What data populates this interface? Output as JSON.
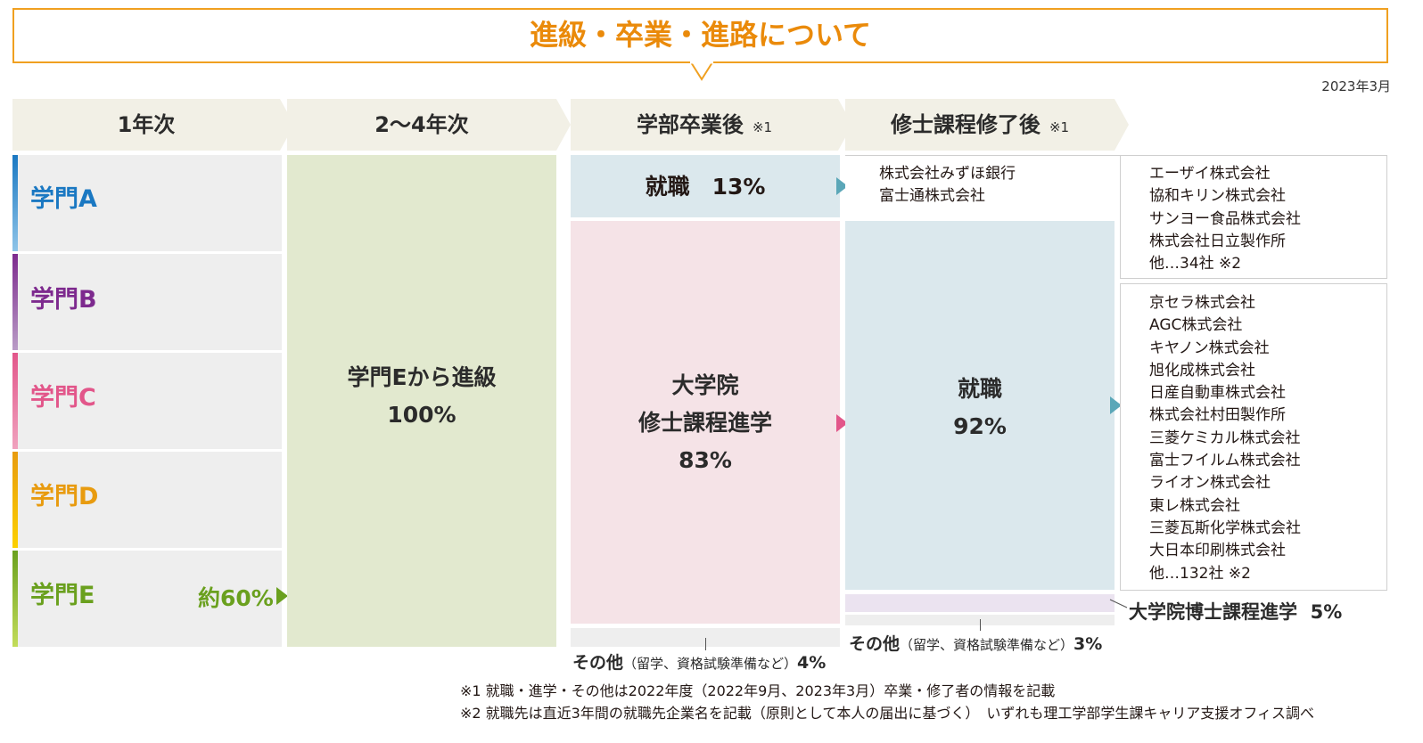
{
  "title": "進級・卒業・進路について",
  "date": "2023年3月",
  "headers": [
    {
      "label": "1年次",
      "note": ""
    },
    {
      "label": "2〜4年次",
      "note": ""
    },
    {
      "label": "学部卒業後",
      "note": "※1"
    },
    {
      "label": "修士課程修了後",
      "note": "※1"
    }
  ],
  "departments": [
    {
      "label": "学門A",
      "color": "#1a78c2"
    },
    {
      "label": "学門B",
      "color": "#7d2a8e"
    },
    {
      "label": "学門C",
      "color": "#e2568a"
    },
    {
      "label": "学門D",
      "color": "#e89b0f"
    },
    {
      "label": "学門E",
      "color": "#6aa01e"
    }
  ],
  "dept_e_percent": "約60%",
  "advance": {
    "line1": "学門Eから進級",
    "line2": "100%"
  },
  "undergrad": {
    "job_label": "就職",
    "job_percent": "13%",
    "grad_line1": "大学院",
    "grad_line2": "修士課程進学",
    "grad_percent": "83%",
    "other_main": "その他",
    "other_sub": "（留学、資格試験準備など）",
    "other_percent": "4%"
  },
  "master": {
    "job_label": "就職",
    "job_percent": "92%",
    "doctor_label": "大学院博士課程進学",
    "doctor_percent": "5%",
    "other_main": "その他",
    "other_sub": "（留学、資格試験準備など）",
    "other_percent": "3%"
  },
  "companies_undergrad_col1": [
    "株式会社みずほ銀行",
    "富士通株式会社"
  ],
  "companies_undergrad_col2": [
    "エーザイ株式会社",
    "協和キリン株式会社",
    "サンヨー食品株式会社",
    "株式会社日立製作所",
    "他…34社 ※2"
  ],
  "companies_master": [
    "京セラ株式会社",
    "AGC株式会社",
    "キヤノン株式会社",
    "旭化成株式会社",
    "日産自動車株式会社",
    "株式会社村田製作所",
    "三菱ケミカル株式会社",
    "富士フイルム株式会社",
    "ライオン株式会社",
    "東レ株式会社",
    "三菱瓦斯化学株式会社",
    "大日本印刷株式会社",
    "他…132社 ※2"
  ],
  "notes": [
    "※1 就職・進学・その他は2022年度（2022年9月、2023年3月）卒業・修了者の情報を記載",
    "※2 就職先は直近3年間の就職先企業名を記載（原則として本人の届出に基づく）　いずれも理工学部学生課キャリア支援オフィス調べ"
  ],
  "colors": {
    "accent": "#ea8a0a",
    "advance_bg": "#e2e9cf",
    "job_bg": "#dbe8ed",
    "grad_bg": "#f5e3e7",
    "other_bg": "#eeeeee",
    "doctor_bg": "#ebe3f0",
    "arrow_blue": "#5ba7b8",
    "arrow_pink": "#e2568a",
    "arrow_green": "#6aa01e"
  }
}
